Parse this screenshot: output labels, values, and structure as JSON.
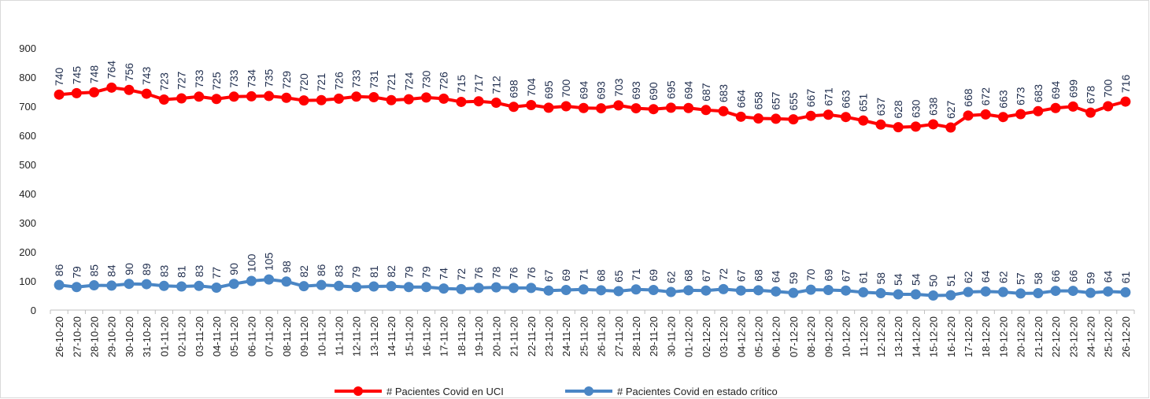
{
  "chart_data": {
    "type": "line",
    "categories": [
      "26-10-20",
      "27-10-20",
      "28-10-20",
      "29-10-20",
      "30-10-20",
      "31-10-20",
      "01-11-20",
      "02-11-20",
      "03-11-20",
      "04-11-20",
      "05-11-20",
      "06-11-20",
      "07-11-20",
      "08-11-20",
      "09-11-20",
      "10-11-20",
      "11-11-20",
      "12-11-20",
      "13-11-20",
      "14-11-20",
      "15-11-20",
      "16-11-20",
      "17-11-20",
      "18-11-20",
      "19-11-20",
      "20-11-20",
      "21-11-20",
      "22-11-20",
      "23-11-20",
      "24-11-20",
      "25-11-20",
      "26-11-20",
      "27-11-20",
      "28-11-20",
      "29-11-20",
      "30-11-20",
      "01-12-20",
      "02-12-20",
      "03-12-20",
      "04-12-20",
      "05-12-20",
      "06-12-20",
      "07-12-20",
      "08-12-20",
      "09-12-20",
      "10-12-20",
      "11-12-20",
      "12-12-20",
      "13-12-20",
      "14-12-20",
      "15-12-20",
      "16-12-20",
      "17-12-20",
      "18-12-20",
      "19-12-20",
      "20-12-20",
      "21-12-20",
      "22-12-20",
      "23-12-20",
      "24-12-20",
      "25-12-20",
      "26-12-20"
    ],
    "series": [
      {
        "name": "# Pacientes Covid en UCI",
        "color": "#ff0000",
        "values": [
          740,
          745,
          748,
          764,
          756,
          743,
          723,
          727,
          733,
          725,
          733,
          734,
          735,
          729,
          720,
          721,
          726,
          733,
          731,
          721,
          724,
          730,
          726,
          715,
          717,
          712,
          698,
          704,
          695,
          700,
          694,
          693,
          703,
          693,
          690,
          695,
          694,
          687,
          683,
          664,
          658,
          657,
          655,
          667,
          671,
          663,
          651,
          637,
          628,
          630,
          638,
          627,
          668,
          672,
          663,
          673,
          683,
          694,
          699,
          678,
          700,
          716
        ]
      },
      {
        "name": "# Pacientes Covid en estado crítico",
        "color": "#4a86c5",
        "values": [
          86,
          79,
          85,
          84,
          90,
          89,
          83,
          81,
          83,
          77,
          90,
          100,
          105,
          98,
          82,
          86,
          83,
          79,
          81,
          82,
          79,
          79,
          74,
          72,
          76,
          78,
          76,
          76,
          67,
          69,
          71,
          68,
          65,
          71,
          69,
          62,
          68,
          67,
          72,
          67,
          68,
          64,
          59,
          70,
          69,
          67,
          61,
          58,
          54,
          54,
          50,
          51,
          62,
          64,
          62,
          57,
          58,
          66,
          66,
          59,
          64,
          61
        ]
      }
    ],
    "ylim": [
      0,
      900
    ],
    "yticks": [
      0,
      100,
      200,
      300,
      400,
      500,
      600,
      700,
      800,
      900
    ],
    "grid": false
  }
}
